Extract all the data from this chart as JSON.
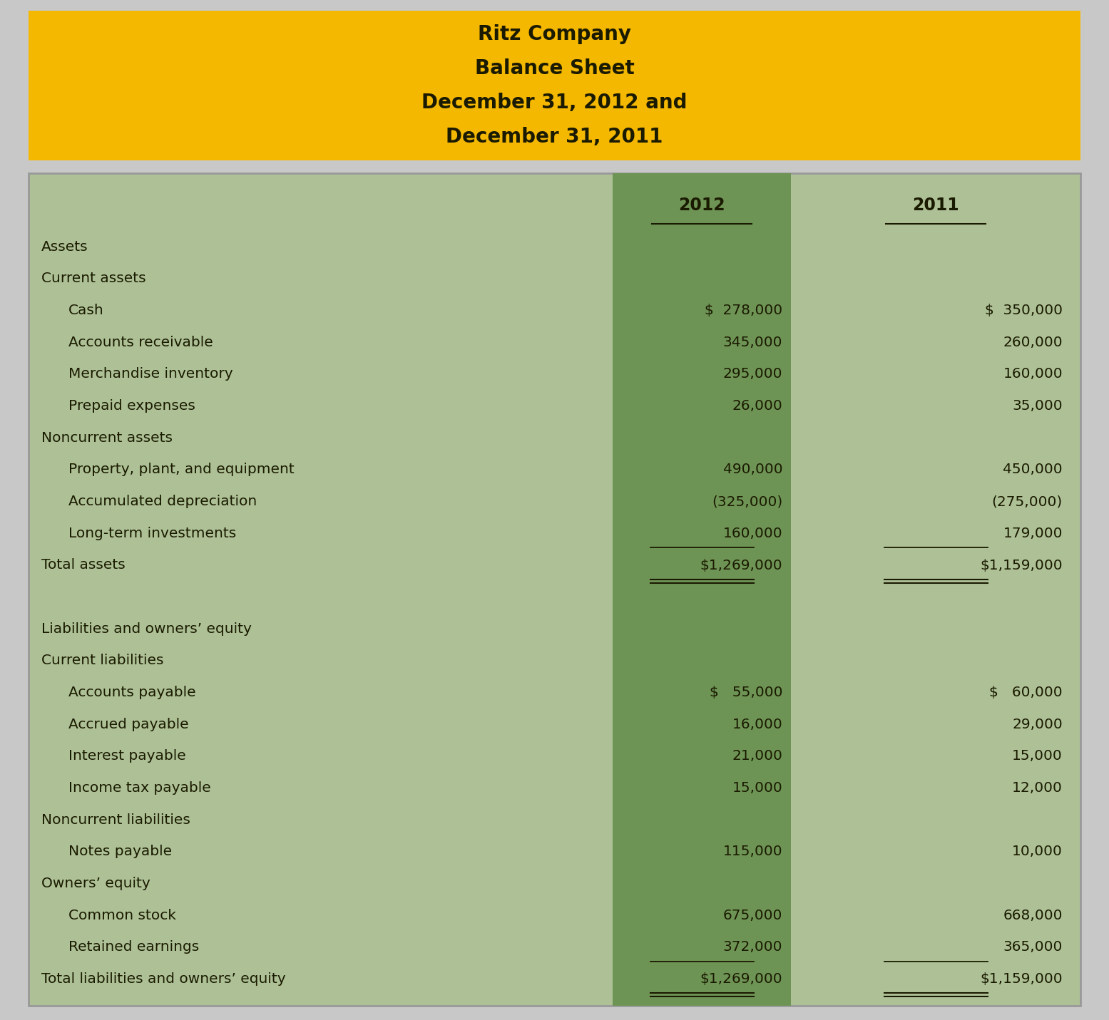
{
  "title_lines": [
    "Ritz Company",
    "Balance Sheet",
    "December 31, 2012 and",
    "December 31, 2011"
  ],
  "title_bg": "#F5B800",
  "title_text_color": "#1a1a00",
  "header_col1": "2012",
  "header_col2": "2011",
  "bg_light": "#aec196",
  "bg_dark": "#6e9455",
  "text_color": "#1a1a00",
  "outer_bg": "#c8c8c8",
  "rows": [
    {
      "label": "Assets",
      "val2012": "",
      "val2011": "",
      "indent": 0,
      "underline": false,
      "double_underline": false,
      "spacer": false
    },
    {
      "label": "Current assets",
      "val2012": "",
      "val2011": "",
      "indent": 0,
      "underline": false,
      "double_underline": false,
      "spacer": false
    },
    {
      "label": "Cash",
      "val2012": "$  278,000",
      "val2011": "$  350,000",
      "indent": 1,
      "underline": false,
      "double_underline": false,
      "spacer": false
    },
    {
      "label": "Accounts receivable",
      "val2012": "345,000",
      "val2011": "260,000",
      "indent": 1,
      "underline": false,
      "double_underline": false,
      "spacer": false
    },
    {
      "label": "Merchandise inventory",
      "val2012": "295,000",
      "val2011": "160,000",
      "indent": 1,
      "underline": false,
      "double_underline": false,
      "spacer": false
    },
    {
      "label": "Prepaid expenses",
      "val2012": "26,000",
      "val2011": "35,000",
      "indent": 1,
      "underline": false,
      "double_underline": false,
      "spacer": false
    },
    {
      "label": "Noncurrent assets",
      "val2012": "",
      "val2011": "",
      "indent": 0,
      "underline": false,
      "double_underline": false,
      "spacer": false
    },
    {
      "label": "Property, plant, and equipment",
      "val2012": "490,000",
      "val2011": "450,000",
      "indent": 1,
      "underline": false,
      "double_underline": false,
      "spacer": false
    },
    {
      "label": "Accumulated depreciation",
      "val2012": "(325,000)",
      "val2011": "(275,000)",
      "indent": 1,
      "underline": false,
      "double_underline": false,
      "spacer": false
    },
    {
      "label": "Long-term investments",
      "val2012": "160,000",
      "val2011": "179,000",
      "indent": 1,
      "underline": true,
      "double_underline": false,
      "spacer": false
    },
    {
      "label": "Total assets",
      "val2012": "$1,269,000",
      "val2011": "$1,159,000",
      "indent": 0,
      "underline": false,
      "double_underline": true,
      "spacer": false
    },
    {
      "label": "",
      "val2012": "",
      "val2011": "",
      "indent": 0,
      "underline": false,
      "double_underline": false,
      "spacer": true
    },
    {
      "label": "Liabilities and owners’ equity",
      "val2012": "",
      "val2011": "",
      "indent": 0,
      "underline": false,
      "double_underline": false,
      "spacer": false
    },
    {
      "label": "Current liabilities",
      "val2012": "",
      "val2011": "",
      "indent": 0,
      "underline": false,
      "double_underline": false,
      "spacer": false
    },
    {
      "label": "Accounts payable",
      "val2012": "$   55,000",
      "val2011": "$   60,000",
      "indent": 1,
      "underline": false,
      "double_underline": false,
      "spacer": false
    },
    {
      "label": "Accrued payable",
      "val2012": "16,000",
      "val2011": "29,000",
      "indent": 1,
      "underline": false,
      "double_underline": false,
      "spacer": false
    },
    {
      "label": "Interest payable",
      "val2012": "21,000",
      "val2011": "15,000",
      "indent": 1,
      "underline": false,
      "double_underline": false,
      "spacer": false
    },
    {
      "label": "Income tax payable",
      "val2012": "15,000",
      "val2011": "12,000",
      "indent": 1,
      "underline": false,
      "double_underline": false,
      "spacer": false
    },
    {
      "label": "Noncurrent liabilities",
      "val2012": "",
      "val2011": "",
      "indent": 0,
      "underline": false,
      "double_underline": false,
      "spacer": false
    },
    {
      "label": "Notes payable",
      "val2012": "115,000",
      "val2011": "10,000",
      "indent": 1,
      "underline": false,
      "double_underline": false,
      "spacer": false
    },
    {
      "label": "Owners’ equity",
      "val2012": "",
      "val2011": "",
      "indent": 0,
      "underline": false,
      "double_underline": false,
      "spacer": false
    },
    {
      "label": "Common stock",
      "val2012": "675,000",
      "val2011": "668,000",
      "indent": 1,
      "underline": false,
      "double_underline": false,
      "spacer": false
    },
    {
      "label": "Retained earnings",
      "val2012": "372,000",
      "val2011": "365,000",
      "indent": 1,
      "underline": true,
      "double_underline": false,
      "spacer": false
    },
    {
      "label": "Total liabilities and owners’ equity",
      "val2012": "$1,269,000",
      "val2011": "$1,159,000",
      "indent": 0,
      "underline": false,
      "double_underline": true,
      "spacer": false
    }
  ]
}
